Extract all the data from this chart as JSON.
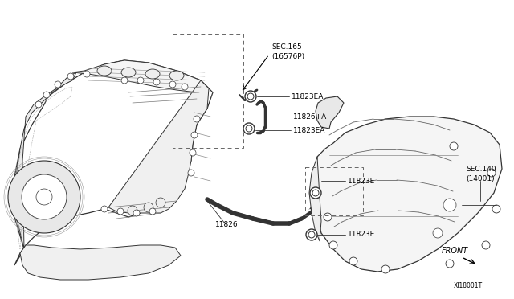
{
  "bg_color": "#ffffff",
  "line_color": "#333333",
  "dashed_color": "#666666",
  "fig_width": 6.4,
  "fig_height": 3.72,
  "dpi": 100,
  "labels": {
    "sec165": "SEC.165\n(16576P)",
    "l11823EA_1": "11823EA",
    "l11826A": "11826+A",
    "l11823EA_2": "11823EA",
    "l11823E_1": "11823E",
    "l11826": "11826",
    "l11823E_2": "11823E",
    "sec140": "SEC.140\n(14001)",
    "front": "FRONT",
    "xi": "XI18001T"
  }
}
